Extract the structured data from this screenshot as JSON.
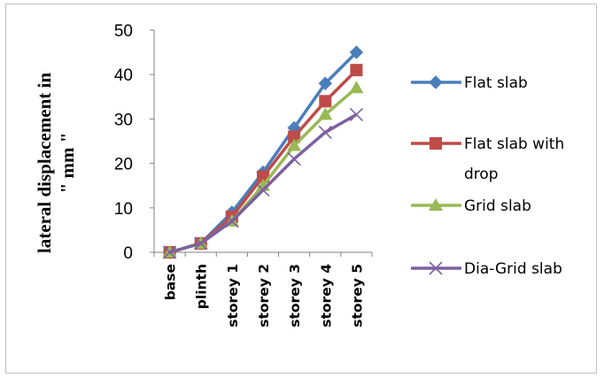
{
  "chart_data": {
    "type": "line",
    "title": "",
    "xlabel": "",
    "ylabel": "lateral displacement in \" mm \"",
    "ylabel_lines": [
      "lateral displacement in",
      "\" mm \""
    ],
    "ylim": [
      0,
      50
    ],
    "yticks": [
      0,
      10,
      20,
      30,
      40,
      50
    ],
    "grid": false,
    "legend_position": "right",
    "categories": [
      "base",
      "plinth",
      "storey 1",
      "storey 2",
      "storey 3",
      "storey 4",
      "storey 5"
    ],
    "series": [
      {
        "name": "Flat slab",
        "legend_lines": [
          "Flat slab"
        ],
        "color": "#4a7ebb",
        "marker": "diamond",
        "values": [
          0,
          2,
          9,
          18,
          28,
          38,
          45
        ]
      },
      {
        "name": "Flat slab with drop",
        "legend_lines": [
          "Flat slab with",
          "drop"
        ],
        "color": "#be4b48",
        "marker": "square",
        "values": [
          0,
          2,
          8,
          17,
          26,
          34,
          41
        ]
      },
      {
        "name": "Grid slab",
        "legend_lines": [
          "Grid slab"
        ],
        "color": "#98b954",
        "marker": "triangle",
        "values": [
          0,
          2,
          7,
          15,
          24,
          31,
          37
        ]
      },
      {
        "name": "Dia-Grid slab",
        "legend_lines": [
          "Dia-Grid slab"
        ],
        "color": "#7d60a0",
        "marker": "x",
        "values": [
          0,
          2,
          7,
          14,
          21,
          27,
          31
        ]
      }
    ]
  }
}
